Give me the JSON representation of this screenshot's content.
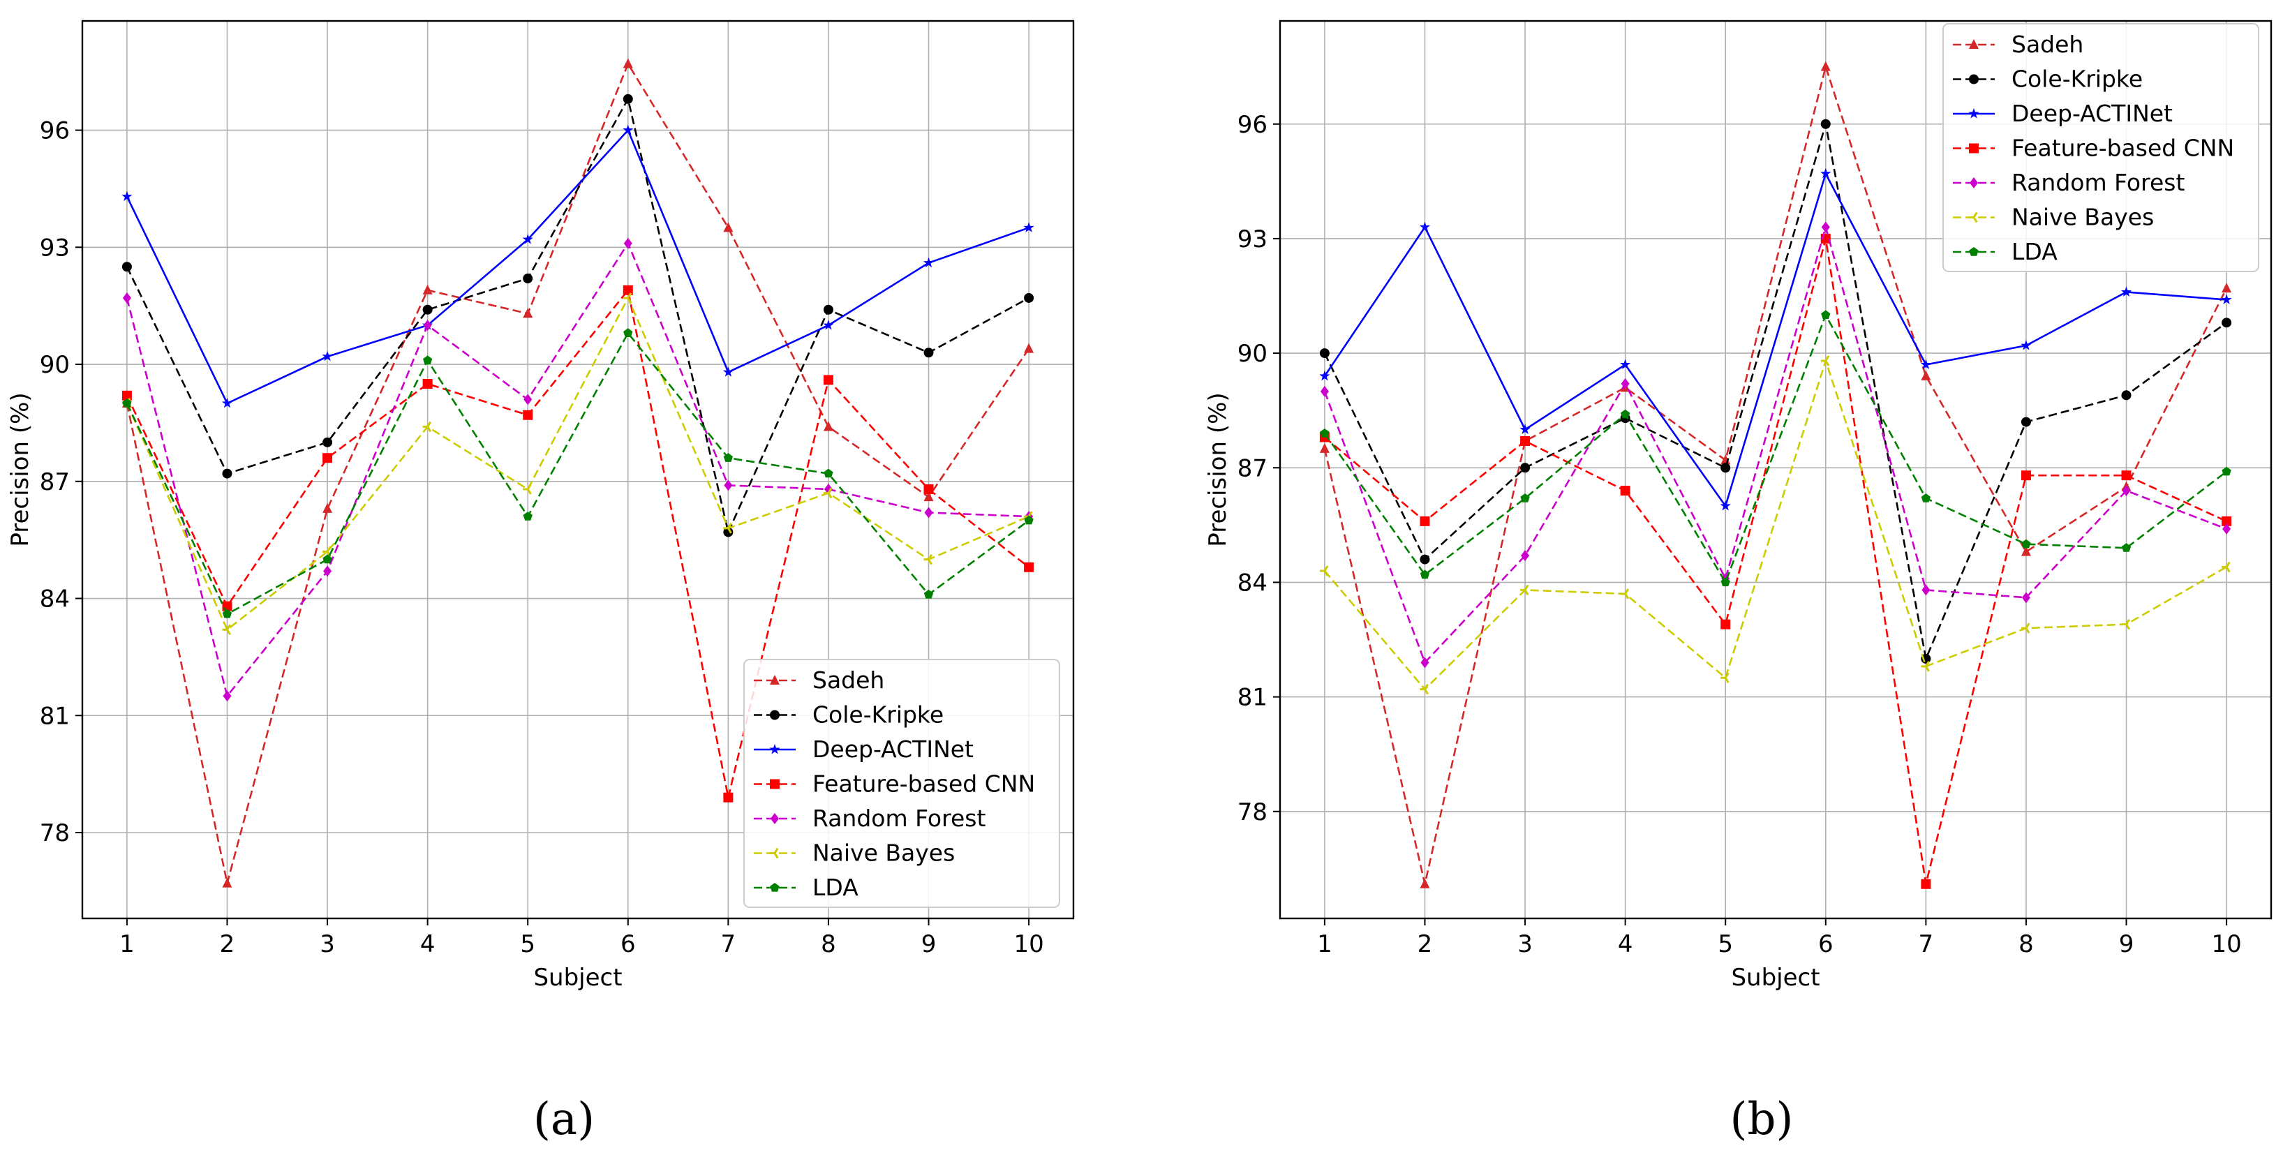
{
  "chart_data": [
    {
      "type": "line",
      "panel_label": "(a)",
      "xlabel": "Subject",
      "ylabel": "Precision (%)",
      "categories": [
        "1",
        "2",
        "3",
        "4",
        "5",
        "6",
        "7",
        "8",
        "9",
        "10"
      ],
      "yticks": [
        "78",
        "81",
        "84",
        "87",
        "90",
        "93",
        "96"
      ],
      "ylim": [
        75.8,
        98.8
      ],
      "grid": true,
      "legend_position": "lower-right",
      "series": [
        {
          "name": "Sadeh",
          "color": "#d62728",
          "marker": "triangle",
          "values": [
            89.0,
            76.7,
            86.3,
            91.9,
            91.3,
            97.7,
            93.5,
            88.4,
            86.6,
            90.4
          ]
        },
        {
          "name": "Cole-Kripke",
          "color": "#000000",
          "marker": "circle",
          "values": [
            92.5,
            87.2,
            88.0,
            91.4,
            92.2,
            96.8,
            85.7,
            91.4,
            90.3,
            91.7
          ]
        },
        {
          "name": "Deep-ACTINet",
          "color": "#0000ff",
          "marker": "star",
          "values": [
            94.3,
            89.0,
            90.2,
            91.0,
            93.2,
            96.0,
            89.8,
            91.0,
            92.6,
            93.5
          ]
        },
        {
          "name": "Feature-based CNN",
          "color": "#ff0000",
          "marker": "square",
          "values": [
            89.2,
            83.8,
            87.6,
            89.5,
            88.7,
            91.9,
            78.9,
            89.6,
            86.8,
            84.8
          ]
        },
        {
          "name": "Random Forest",
          "color": "#cc00cc",
          "marker": "diamond",
          "values": [
            91.7,
            81.5,
            84.7,
            91.0,
            89.1,
            93.1,
            86.9,
            86.8,
            86.2,
            86.1
          ]
        },
        {
          "name": "Naive Bayes",
          "color": "#cccc00",
          "marker": "tri-left",
          "values": [
            89.0,
            83.2,
            85.2,
            88.4,
            86.8,
            91.7,
            85.8,
            86.7,
            85.0,
            86.1
          ]
        },
        {
          "name": "LDA",
          "color": "#008000",
          "marker": "pentagon",
          "values": [
            89.0,
            83.6,
            85.0,
            90.1,
            86.1,
            90.8,
            87.6,
            87.2,
            84.1,
            86.0
          ]
        }
      ]
    },
    {
      "type": "line",
      "panel_label": "(b)",
      "xlabel": "Subject",
      "ylabel": "Precision (%)",
      "categories": [
        "1",
        "2",
        "3",
        "4",
        "5",
        "6",
        "7",
        "8",
        "9",
        "10"
      ],
      "yticks": [
        "78",
        "81",
        "84",
        "87",
        "90",
        "93",
        "96"
      ],
      "ylim": [
        75.2,
        98.7
      ],
      "grid": true,
      "legend_position": "upper-right",
      "series": [
        {
          "name": "Sadeh",
          "color": "#d62728",
          "marker": "triangle",
          "values": [
            87.5,
            76.1,
            87.7,
            89.1,
            87.2,
            97.5,
            89.4,
            84.8,
            86.5,
            91.7
          ]
        },
        {
          "name": "Cole-Kripke",
          "color": "#000000",
          "marker": "circle",
          "values": [
            90.0,
            84.6,
            87.0,
            88.3,
            87.0,
            96.0,
            82.0,
            88.2,
            88.9,
            90.8
          ]
        },
        {
          "name": "Deep-ACTINet",
          "color": "#0000ff",
          "marker": "star",
          "values": [
            89.4,
            93.3,
            88.0,
            89.7,
            86.0,
            94.7,
            89.7,
            90.2,
            91.6,
            91.4
          ]
        },
        {
          "name": "Feature-based CNN",
          "color": "#ff0000",
          "marker": "square",
          "values": [
            87.8,
            85.6,
            87.7,
            86.4,
            82.9,
            93.0,
            76.1,
            86.8,
            86.8,
            85.6
          ]
        },
        {
          "name": "Random Forest",
          "color": "#cc00cc",
          "marker": "diamond",
          "values": [
            89.0,
            81.9,
            84.7,
            89.2,
            84.1,
            93.3,
            83.8,
            83.6,
            86.4,
            85.4
          ]
        },
        {
          "name": "Naive Bayes",
          "color": "#cccc00",
          "marker": "tri-left",
          "values": [
            84.3,
            81.2,
            83.8,
            83.7,
            81.5,
            89.8,
            81.8,
            82.8,
            82.9,
            84.4
          ]
        },
        {
          "name": "LDA",
          "color": "#008000",
          "marker": "pentagon",
          "values": [
            87.9,
            84.2,
            86.2,
            88.4,
            84.0,
            91.0,
            86.2,
            85.0,
            84.9,
            86.9
          ]
        }
      ]
    }
  ]
}
